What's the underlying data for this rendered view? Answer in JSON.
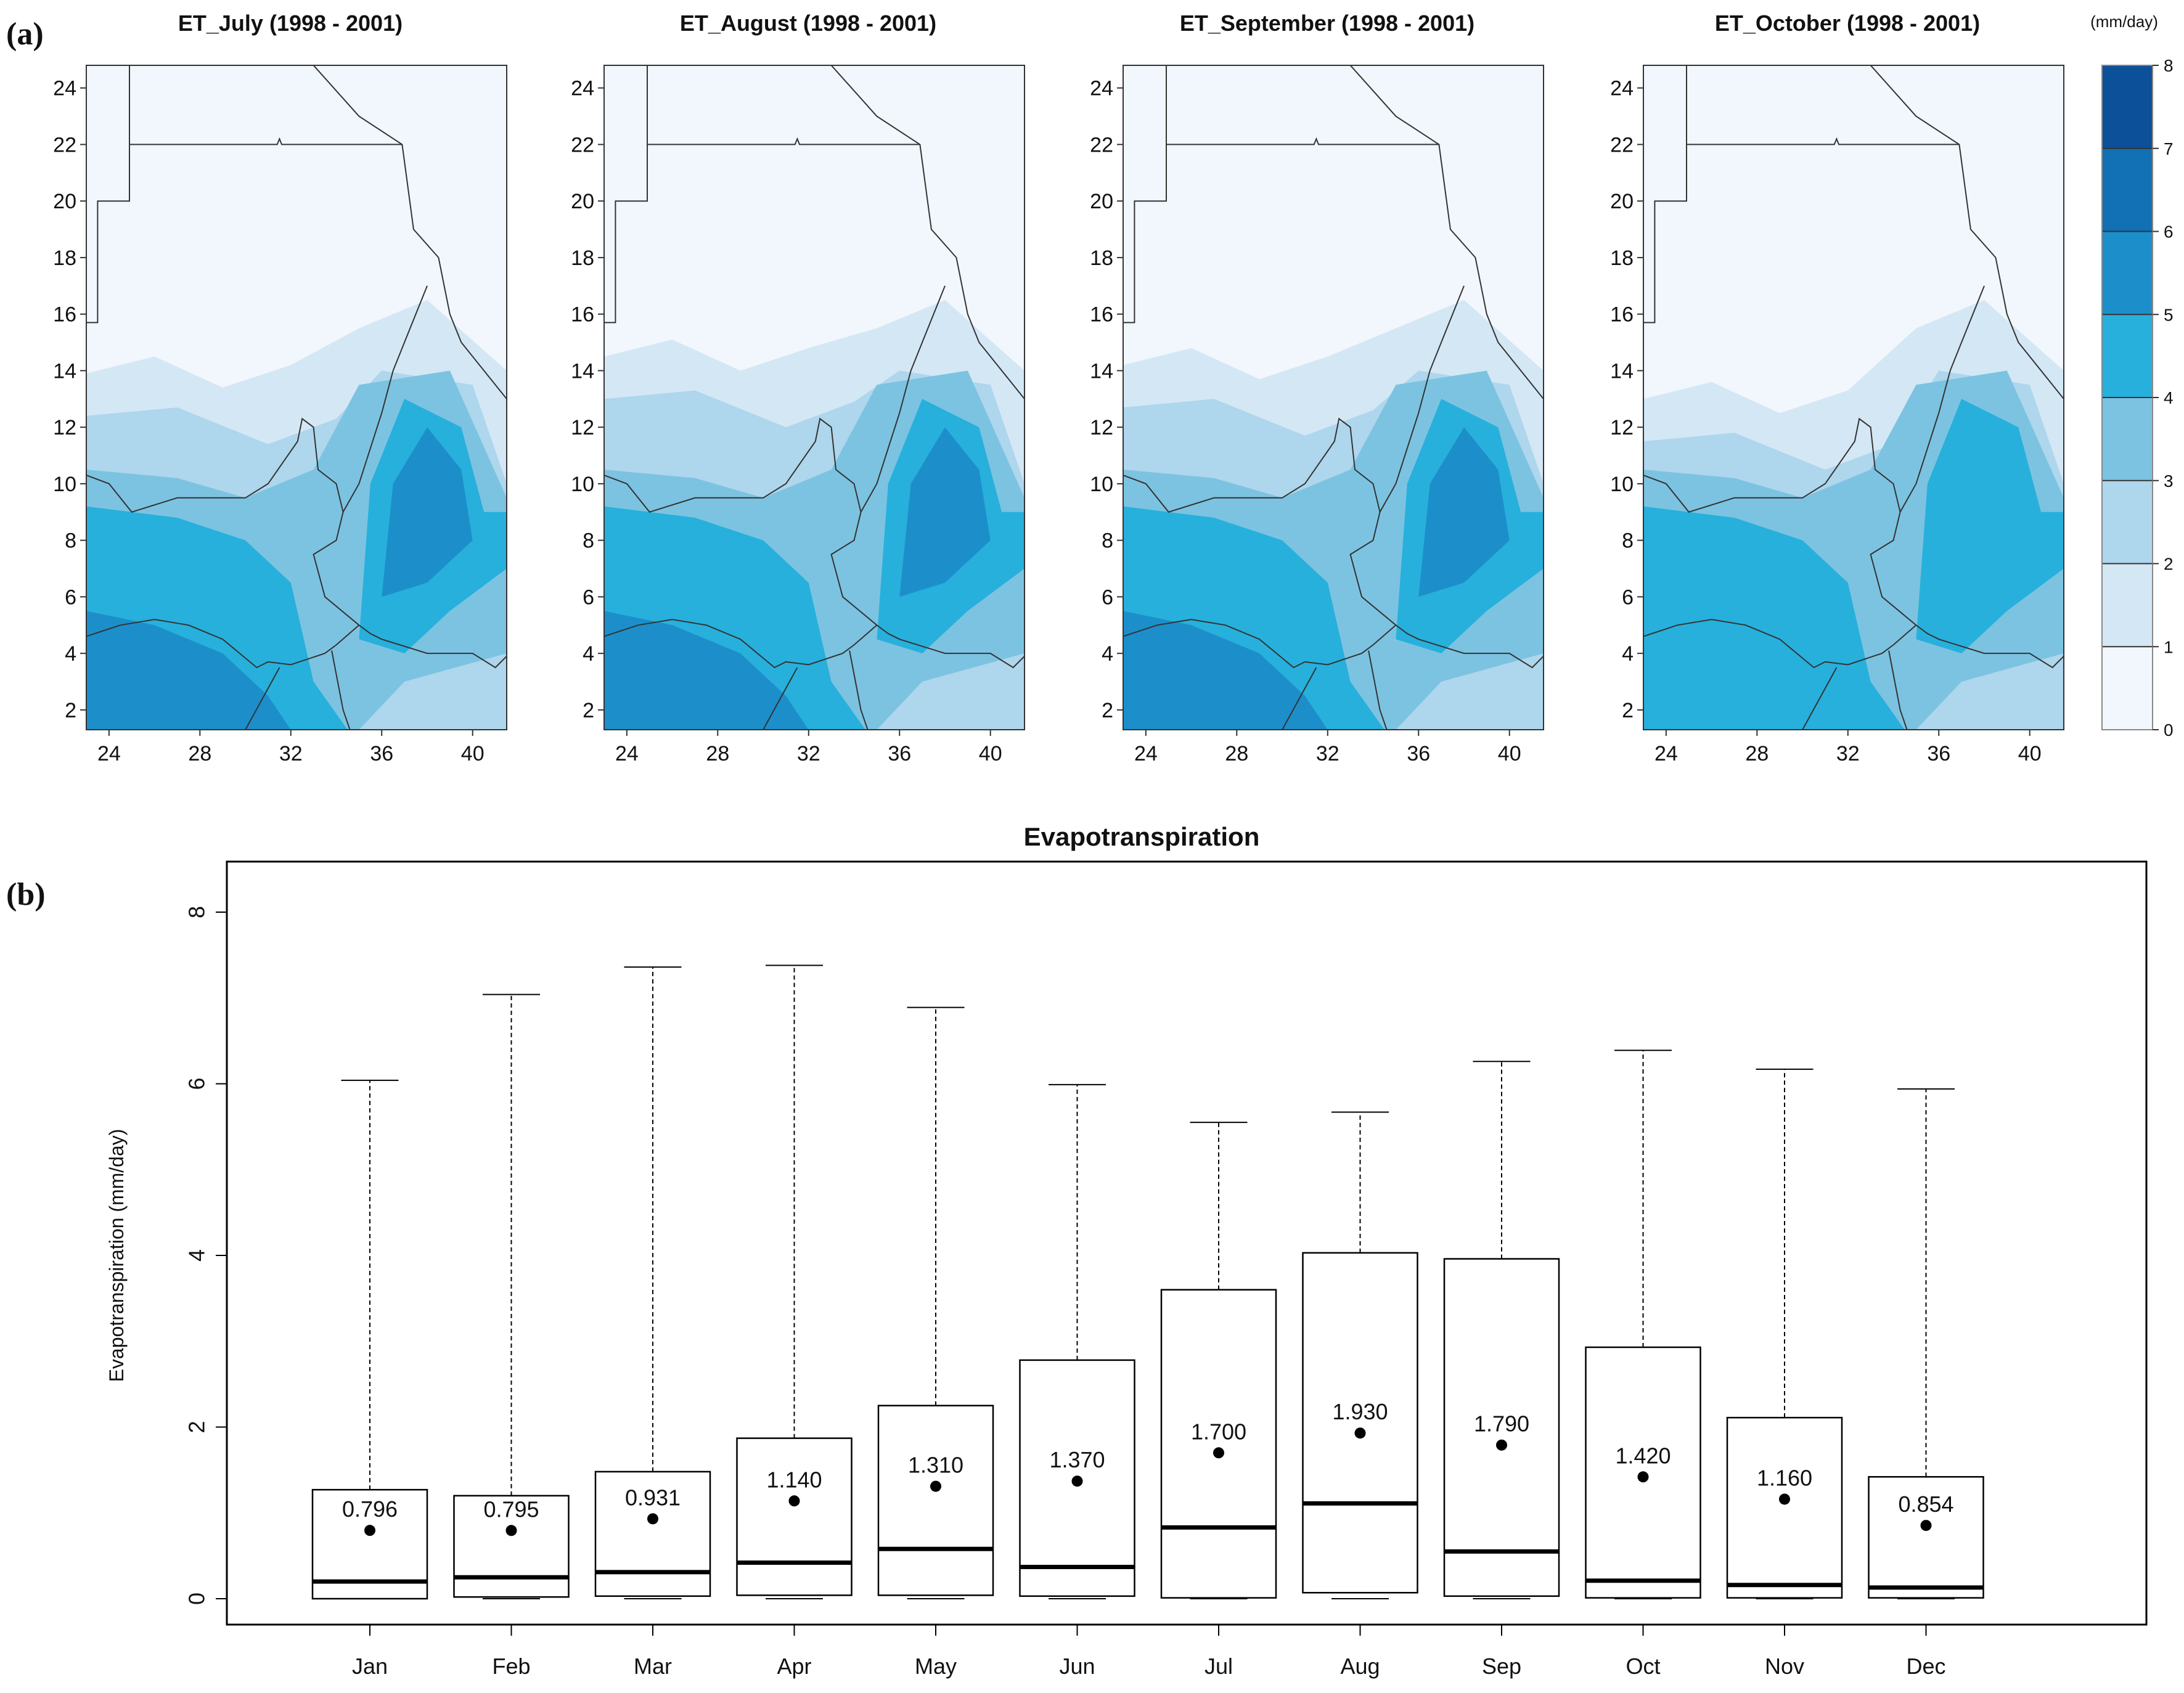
{
  "panel_labels": {
    "a": "(a)",
    "b": "(b)"
  },
  "colors": {
    "levels": [
      "#f1f7fd",
      "#d4e7f5",
      "#aed6ec",
      "#7cc3e1",
      "#27b0dc",
      "#1c8fca",
      "#1270b5",
      "#0d509a"
    ],
    "land_base": "#f1f7fd",
    "box_stroke": "#000000"
  },
  "maps": [
    {
      "title": "ET_July   (1998 - 2001)",
      "month": "July",
      "intensity": 0.95
    },
    {
      "title": "ET_August   (1998 - 2001)",
      "month": "August",
      "intensity": 1.05
    },
    {
      "title": "ET_September   (1998 - 2001)",
      "month": "September",
      "intensity": 1.0
    },
    {
      "title": "ET_October   (1998 - 2001)",
      "month": "October",
      "intensity": 0.8
    }
  ],
  "map_axes": {
    "x_ticks": [
      "24",
      "28",
      "32",
      "36",
      "40"
    ],
    "y_ticks": [
      "2",
      "4",
      "6",
      "8",
      "10",
      "12",
      "14",
      "16",
      "18",
      "20",
      "22",
      "24"
    ],
    "xlim": [
      23.0,
      41.5
    ],
    "ylim": [
      1.3,
      24.8
    ]
  },
  "colorbar": {
    "unit": "(mm/day)",
    "ticks": [
      "0",
      "1",
      "2",
      "3",
      "4",
      "5",
      "6",
      "7",
      "8"
    ],
    "range": [
      0,
      8
    ]
  },
  "chart_data": {
    "type": "box",
    "title": "Evapotranspiration",
    "xlabel": "",
    "ylabel": "Evapotranspiration (mm/day)",
    "ylim": [
      0,
      8
    ],
    "y_ticks": [
      "0",
      "2",
      "4",
      "6",
      "8"
    ],
    "categories": [
      "Jan",
      "Feb",
      "Mar",
      "Apr",
      "May",
      "Jun",
      "Jul",
      "Aug",
      "Sep",
      "Oct",
      "Nov",
      "Dec"
    ],
    "boxes": [
      {
        "min": 0.0,
        "q1": 0.0,
        "median": 0.2,
        "q3": 1.27,
        "max": 6.04,
        "mean": 0.796,
        "mean_label": "0.796"
      },
      {
        "min": 0.0,
        "q1": 0.02,
        "median": 0.25,
        "q3": 1.2,
        "max": 7.04,
        "mean": 0.795,
        "mean_label": "0.795"
      },
      {
        "min": 0.0,
        "q1": 0.03,
        "median": 0.31,
        "q3": 1.48,
        "max": 7.36,
        "mean": 0.931,
        "mean_label": "0.931"
      },
      {
        "min": 0.0,
        "q1": 0.04,
        "median": 0.42,
        "q3": 1.87,
        "max": 7.38,
        "mean": 1.14,
        "mean_label": "1.140"
      },
      {
        "min": 0.0,
        "q1": 0.04,
        "median": 0.58,
        "q3": 2.25,
        "max": 6.89,
        "mean": 1.31,
        "mean_label": "1.310"
      },
      {
        "min": 0.0,
        "q1": 0.03,
        "median": 0.37,
        "q3": 2.78,
        "max": 5.99,
        "mean": 1.37,
        "mean_label": "1.370"
      },
      {
        "min": 0.0,
        "q1": 0.01,
        "median": 0.83,
        "q3": 3.6,
        "max": 5.55,
        "mean": 1.7,
        "mean_label": "1.700"
      },
      {
        "min": 0.0,
        "q1": 0.07,
        "median": 1.11,
        "q3": 4.03,
        "max": 5.67,
        "mean": 1.93,
        "mean_label": "1.930"
      },
      {
        "min": 0.0,
        "q1": 0.03,
        "median": 0.55,
        "q3": 3.96,
        "max": 6.26,
        "mean": 1.79,
        "mean_label": "1.790"
      },
      {
        "min": 0.0,
        "q1": 0.01,
        "median": 0.21,
        "q3": 2.93,
        "max": 6.39,
        "mean": 1.42,
        "mean_label": "1.420"
      },
      {
        "min": 0.0,
        "q1": 0.01,
        "median": 0.16,
        "q3": 2.11,
        "max": 6.17,
        "mean": 1.16,
        "mean_label": "1.160"
      },
      {
        "min": 0.0,
        "q1": 0.01,
        "median": 0.13,
        "q3": 1.42,
        "max": 5.94,
        "mean": 0.854,
        "mean_label": "0.854"
      }
    ]
  }
}
